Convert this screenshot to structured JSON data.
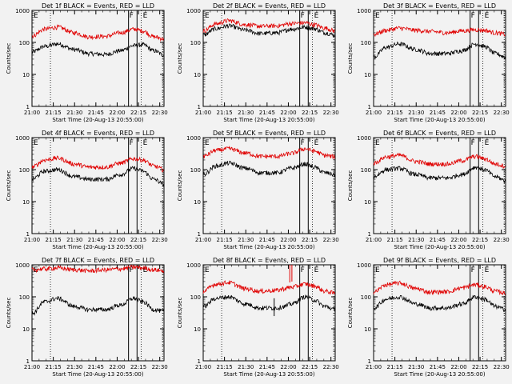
{
  "x_ticks": [
    "21:00",
    "21:15",
    "21:30",
    "21:45",
    "22:00",
    "22:15",
    "22:30"
  ],
  "y_ticks": [
    "1",
    "10",
    "100",
    "1000"
  ],
  "y_label": "Counts/sec",
  "x_label": "Start Time (20-Aug-13 20:55:00)",
  "marker_labels": {
    "E1": "E",
    "F": "F",
    "E2": "E"
  },
  "colors": {
    "events": "#000000",
    "lld": "#e00000",
    "background": "#f2f2f2"
  },
  "chart_data": [
    {
      "type": "line",
      "title": "Det 1f BLACK = Events, RED = LLD",
      "xlabel": "Start Time (20-Aug-13 20:55:00)",
      "ylabel": "Counts/sec",
      "x_range": [
        "21:00",
        "22:33"
      ],
      "yscale": "log",
      "ylim": [
        1,
        1000
      ],
      "series": [
        {
          "color": "black",
          "anchors": [
            [
              0,
              50
            ],
            [
              9,
              75
            ],
            [
              18,
              90
            ],
            [
              30,
              60
            ],
            [
              40,
              45
            ],
            [
              52,
              42
            ],
            [
              62,
              55
            ],
            [
              72,
              80
            ],
            [
              78,
              85
            ],
            [
              86,
              55
            ],
            [
              93,
              40
            ]
          ]
        },
        {
          "color": "red",
          "anchors": [
            [
              0,
              160
            ],
            [
              9,
              260
            ],
            [
              18,
              300
            ],
            [
              30,
              200
            ],
            [
              40,
              150
            ],
            [
              52,
              155
            ],
            [
              62,
              200
            ],
            [
              72,
              260
            ],
            [
              78,
              230
            ],
            [
              86,
              150
            ],
            [
              93,
              130
            ]
          ]
        }
      ]
    },
    {
      "type": "line",
      "title": "Det 2f BLACK = Events, RED = LLD",
      "xlabel": "Start Time (20-Aug-13 20:55:00)",
      "ylabel": "Counts/sec",
      "x_range": [
        "21:00",
        "22:33"
      ],
      "yscale": "log",
      "ylim": [
        1,
        1000
      ],
      "series": [
        {
          "color": "black",
          "anchors": [
            [
              0,
              170
            ],
            [
              9,
              270
            ],
            [
              18,
              330
            ],
            [
              30,
              240
            ],
            [
              40,
              190
            ],
            [
              52,
              200
            ],
            [
              62,
              260
            ],
            [
              72,
              300
            ],
            [
              78,
              270
            ],
            [
              86,
              200
            ],
            [
              93,
              170
            ]
          ]
        },
        {
          "color": "red",
          "anchors": [
            [
              0,
              230
            ],
            [
              9,
              380
            ],
            [
              18,
              480
            ],
            [
              30,
              360
            ],
            [
              40,
              320
            ],
            [
              52,
              330
            ],
            [
              62,
              390
            ],
            [
              72,
              410
            ],
            [
              78,
              360
            ],
            [
              86,
              280
            ],
            [
              93,
              230
            ]
          ]
        }
      ]
    },
    {
      "type": "line",
      "title": "Det 3f BLACK = Events, RED = LLD",
      "xlabel": "Start Time (20-Aug-13 20:55:00)",
      "ylabel": "Counts/sec",
      "x_range": [
        "21:00",
        "22:33"
      ],
      "yscale": "log",
      "ylim": [
        1,
        1000
      ],
      "series": [
        {
          "color": "black",
          "anchors": [
            [
              0,
              35
            ],
            [
              9,
              70
            ],
            [
              18,
              90
            ],
            [
              30,
              60
            ],
            [
              40,
              45
            ],
            [
              52,
              45
            ],
            [
              62,
              55
            ],
            [
              72,
              90
            ],
            [
              78,
              75
            ],
            [
              86,
              45
            ],
            [
              93,
              35
            ]
          ]
        },
        {
          "color": "red",
          "anchors": [
            [
              0,
              180
            ],
            [
              9,
              240
            ],
            [
              18,
              280
            ],
            [
              30,
              240
            ],
            [
              40,
              220
            ],
            [
              52,
              200
            ],
            [
              62,
              230
            ],
            [
              72,
              250
            ],
            [
              78,
              240
            ],
            [
              86,
              200
            ],
            [
              93,
              180
            ]
          ]
        }
      ]
    },
    {
      "type": "line",
      "title": "Det 4f BLACK = Events, RED = LLD",
      "xlabel": "Start Time (20-Aug-13 20:55:00)",
      "ylabel": "Counts/sec",
      "x_range": [
        "21:00",
        "22:33"
      ],
      "yscale": "log",
      "ylim": [
        1,
        1000
      ],
      "series": [
        {
          "color": "black",
          "anchors": [
            [
              0,
              50
            ],
            [
              9,
              90
            ],
            [
              18,
              100
            ],
            [
              30,
              60
            ],
            [
              40,
              50
            ],
            [
              52,
              50
            ],
            [
              62,
              70
            ],
            [
              72,
              110
            ],
            [
              78,
              90
            ],
            [
              86,
              50
            ],
            [
              93,
              35
            ]
          ]
        },
        {
          "color": "red",
          "anchors": [
            [
              0,
              120
            ],
            [
              9,
              200
            ],
            [
              18,
              230
            ],
            [
              30,
              150
            ],
            [
              40,
              120
            ],
            [
              52,
              120
            ],
            [
              62,
              160
            ],
            [
              72,
              220
            ],
            [
              78,
              200
            ],
            [
              86,
              130
            ],
            [
              93,
              100
            ]
          ]
        }
      ]
    },
    {
      "type": "line",
      "title": "Det 5f BLACK = Events, RED = LLD",
      "xlabel": "Start Time (20-Aug-13 20:55:00)",
      "ylabel": "Counts/sec",
      "x_range": [
        "21:00",
        "22:33"
      ],
      "yscale": "log",
      "ylim": [
        1,
        1000
      ],
      "series": [
        {
          "color": "black",
          "anchors": [
            [
              0,
              70
            ],
            [
              9,
              130
            ],
            [
              18,
              160
            ],
            [
              30,
              110
            ],
            [
              40,
              80
            ],
            [
              52,
              80
            ],
            [
              62,
              110
            ],
            [
              72,
              150
            ],
            [
              78,
              120
            ],
            [
              86,
              80
            ],
            [
              93,
              70
            ]
          ]
        },
        {
          "color": "red",
          "anchors": [
            [
              0,
              260
            ],
            [
              9,
              400
            ],
            [
              18,
              450
            ],
            [
              30,
              330
            ],
            [
              40,
              260
            ],
            [
              52,
              260
            ],
            [
              62,
              320
            ],
            [
              72,
              450
            ],
            [
              78,
              380
            ],
            [
              86,
              280
            ],
            [
              93,
              250
            ]
          ]
        }
      ]
    },
    {
      "type": "line",
      "title": "Det 6f BLACK = Events, RED = LLD",
      "xlabel": "Start Time (20-Aug-13 20:55:00)",
      "ylabel": "Counts/sec",
      "x_range": [
        "21:00",
        "22:33"
      ],
      "yscale": "log",
      "ylim": [
        1,
        1000
      ],
      "series": [
        {
          "color": "black",
          "anchors": [
            [
              0,
              60
            ],
            [
              9,
              100
            ],
            [
              18,
              110
            ],
            [
              30,
              70
            ],
            [
              40,
              55
            ],
            [
              52,
              55
            ],
            [
              62,
              70
            ],
            [
              72,
              120
            ],
            [
              78,
              100
            ],
            [
              86,
              60
            ],
            [
              93,
              45
            ]
          ]
        },
        {
          "color": "red",
          "anchors": [
            [
              0,
              160
            ],
            [
              9,
              250
            ],
            [
              18,
              280
            ],
            [
              30,
              180
            ],
            [
              40,
              150
            ],
            [
              52,
              150
            ],
            [
              62,
              190
            ],
            [
              72,
              260
            ],
            [
              78,
              220
            ],
            [
              86,
              150
            ],
            [
              93,
              130
            ]
          ]
        }
      ]
    },
    {
      "type": "line",
      "title": "Det 7f BLACK = Events, RED = LLD",
      "xlabel": "Start Time (20-Aug-13 20:55:00)",
      "ylabel": "Counts/sec",
      "x_range": [
        "21:00",
        "22:33"
      ],
      "yscale": "log",
      "ylim": [
        1,
        1000
      ],
      "series": [
        {
          "color": "black",
          "anchors": [
            [
              0,
              30
            ],
            [
              9,
              70
            ],
            [
              18,
              90
            ],
            [
              30,
              50
            ],
            [
              40,
              40
            ],
            [
              52,
              40
            ],
            [
              62,
              55
            ],
            [
              72,
              90
            ],
            [
              78,
              70
            ],
            [
              86,
              40
            ],
            [
              93,
              35
            ]
          ]
        },
        {
          "color": "red",
          "anchors": [
            [
              0,
              700
            ],
            [
              9,
              750
            ],
            [
              18,
              800
            ],
            [
              30,
              700
            ],
            [
              40,
              650
            ],
            [
              52,
              700
            ],
            [
              62,
              750
            ],
            [
              72,
              850
            ],
            [
              78,
              800
            ],
            [
              86,
              700
            ],
            [
              93,
              650
            ]
          ]
        }
      ]
    },
    {
      "type": "line",
      "title": "Det 8f BLACK = Events, RED = LLD",
      "xlabel": "Start Time (20-Aug-13 20:55:00)",
      "ylabel": "Counts/sec",
      "x_range": [
        "21:00",
        "22:33"
      ],
      "yscale": "log",
      "ylim": [
        1,
        1000
      ],
      "series": [
        {
          "color": "black",
          "anchors": [
            [
              0,
              50
            ],
            [
              9,
              90
            ],
            [
              18,
              100
            ],
            [
              30,
              60
            ],
            [
              40,
              45
            ],
            [
              52,
              45
            ],
            [
              57,
              50
            ],
            [
              62,
              60
            ],
            [
              72,
              100
            ],
            [
              78,
              80
            ],
            [
              86,
              50
            ],
            [
              93,
              40
            ]
          ]
        },
        {
          "color": "red",
          "anchors": [
            [
              0,
              150
            ],
            [
              9,
              250
            ],
            [
              18,
              280
            ],
            [
              30,
              180
            ],
            [
              40,
              150
            ],
            [
              52,
              160
            ],
            [
              57,
              180
            ],
            [
              62,
              200
            ],
            [
              72,
              250
            ],
            [
              78,
              220
            ],
            [
              86,
              150
            ],
            [
              93,
              130
            ]
          ]
        }
      ]
    },
    {
      "type": "line",
      "title": "Det 9f BLACK = Events, RED = LLD",
      "xlabel": "Start Time (20-Aug-13 20:55:00)",
      "ylabel": "Counts/sec",
      "x_range": [
        "21:00",
        "22:33"
      ],
      "yscale": "log",
      "ylim": [
        1,
        1000
      ],
      "series": [
        {
          "color": "black",
          "anchors": [
            [
              0,
              45
            ],
            [
              9,
              85
            ],
            [
              18,
              100
            ],
            [
              30,
              60
            ],
            [
              40,
              45
            ],
            [
              52,
              45
            ],
            [
              62,
              60
            ],
            [
              72,
              100
            ],
            [
              78,
              85
            ],
            [
              86,
              50
            ],
            [
              93,
              40
            ]
          ]
        },
        {
          "color": "red",
          "anchors": [
            [
              0,
              140
            ],
            [
              9,
              240
            ],
            [
              18,
              270
            ],
            [
              30,
              180
            ],
            [
              40,
              140
            ],
            [
              52,
              145
            ],
            [
              62,
              190
            ],
            [
              72,
              240
            ],
            [
              78,
              210
            ],
            [
              86,
              150
            ],
            [
              93,
              130
            ]
          ]
        }
      ]
    }
  ]
}
